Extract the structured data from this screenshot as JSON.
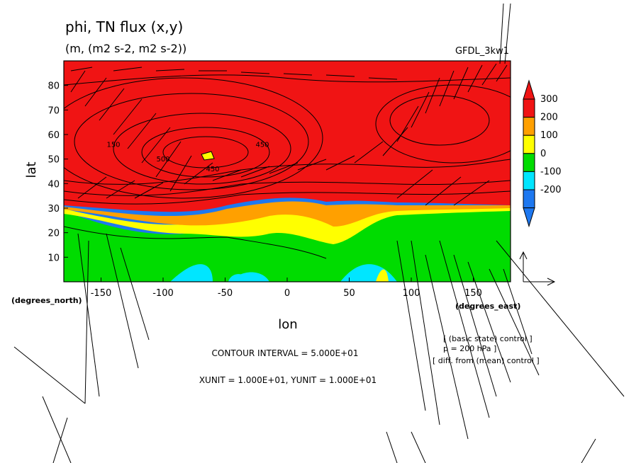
{
  "chart_data": {
    "type": "heatmap",
    "title": "phi, TN flux (x,y)",
    "subtitle": "(m, (m2 s-2, m2 s-2))",
    "model_label": "GFDL_3kw1",
    "xlabel": "lon",
    "ylabel": "lat",
    "x_unit_label": "(degrees_east)",
    "y_unit_label": "(degrees_north)",
    "xlim": [
      -180,
      180
    ],
    "ylim": [
      0,
      90
    ],
    "x_ticks": [
      -150,
      -100,
      -50,
      0,
      50,
      100,
      150
    ],
    "x_tick_labels": [
      "-150",
      "-100",
      "-50",
      "0",
      "50",
      "100",
      "150"
    ],
    "y_ticks": [
      10,
      20,
      30,
      40,
      50,
      60,
      70,
      80
    ],
    "y_tick_labels": [
      "10",
      "20",
      "30",
      "40",
      "50",
      "60",
      "70",
      "80"
    ],
    "colorbar": {
      "levels": [
        -200,
        -100,
        0,
        100,
        200,
        300
      ],
      "labels": [
        "-200",
        "-100",
        "0",
        "100",
        "200",
        "300"
      ],
      "colors": [
        "#1e78f0",
        "#00e6ff",
        "#00dc00",
        "#ffff00",
        "#ffa000",
        "#f01414"
      ],
      "under_color": "#1e78f0",
      "over_color": "#f01414"
    },
    "contour_labels": [
      {
        "lon": -140,
        "lat": 55,
        "text": "150"
      },
      {
        "lon": -100,
        "lat": 49,
        "text": "500"
      },
      {
        "lon": -60,
        "lat": 45,
        "text": "450"
      },
      {
        "lon": -20,
        "lat": 55,
        "text": "450"
      }
    ],
    "contour_interval_text": "CONTOUR INTERVAL = 5.000E+01",
    "unit_text": "XUNIT = 1.000E+01, YUNIT = 1.000E+01",
    "legend_lines": [
      "[ (basic state) control ]",
      "p = 200 hPa ]",
      "[ diff. from (mean) control ]"
    ]
  }
}
